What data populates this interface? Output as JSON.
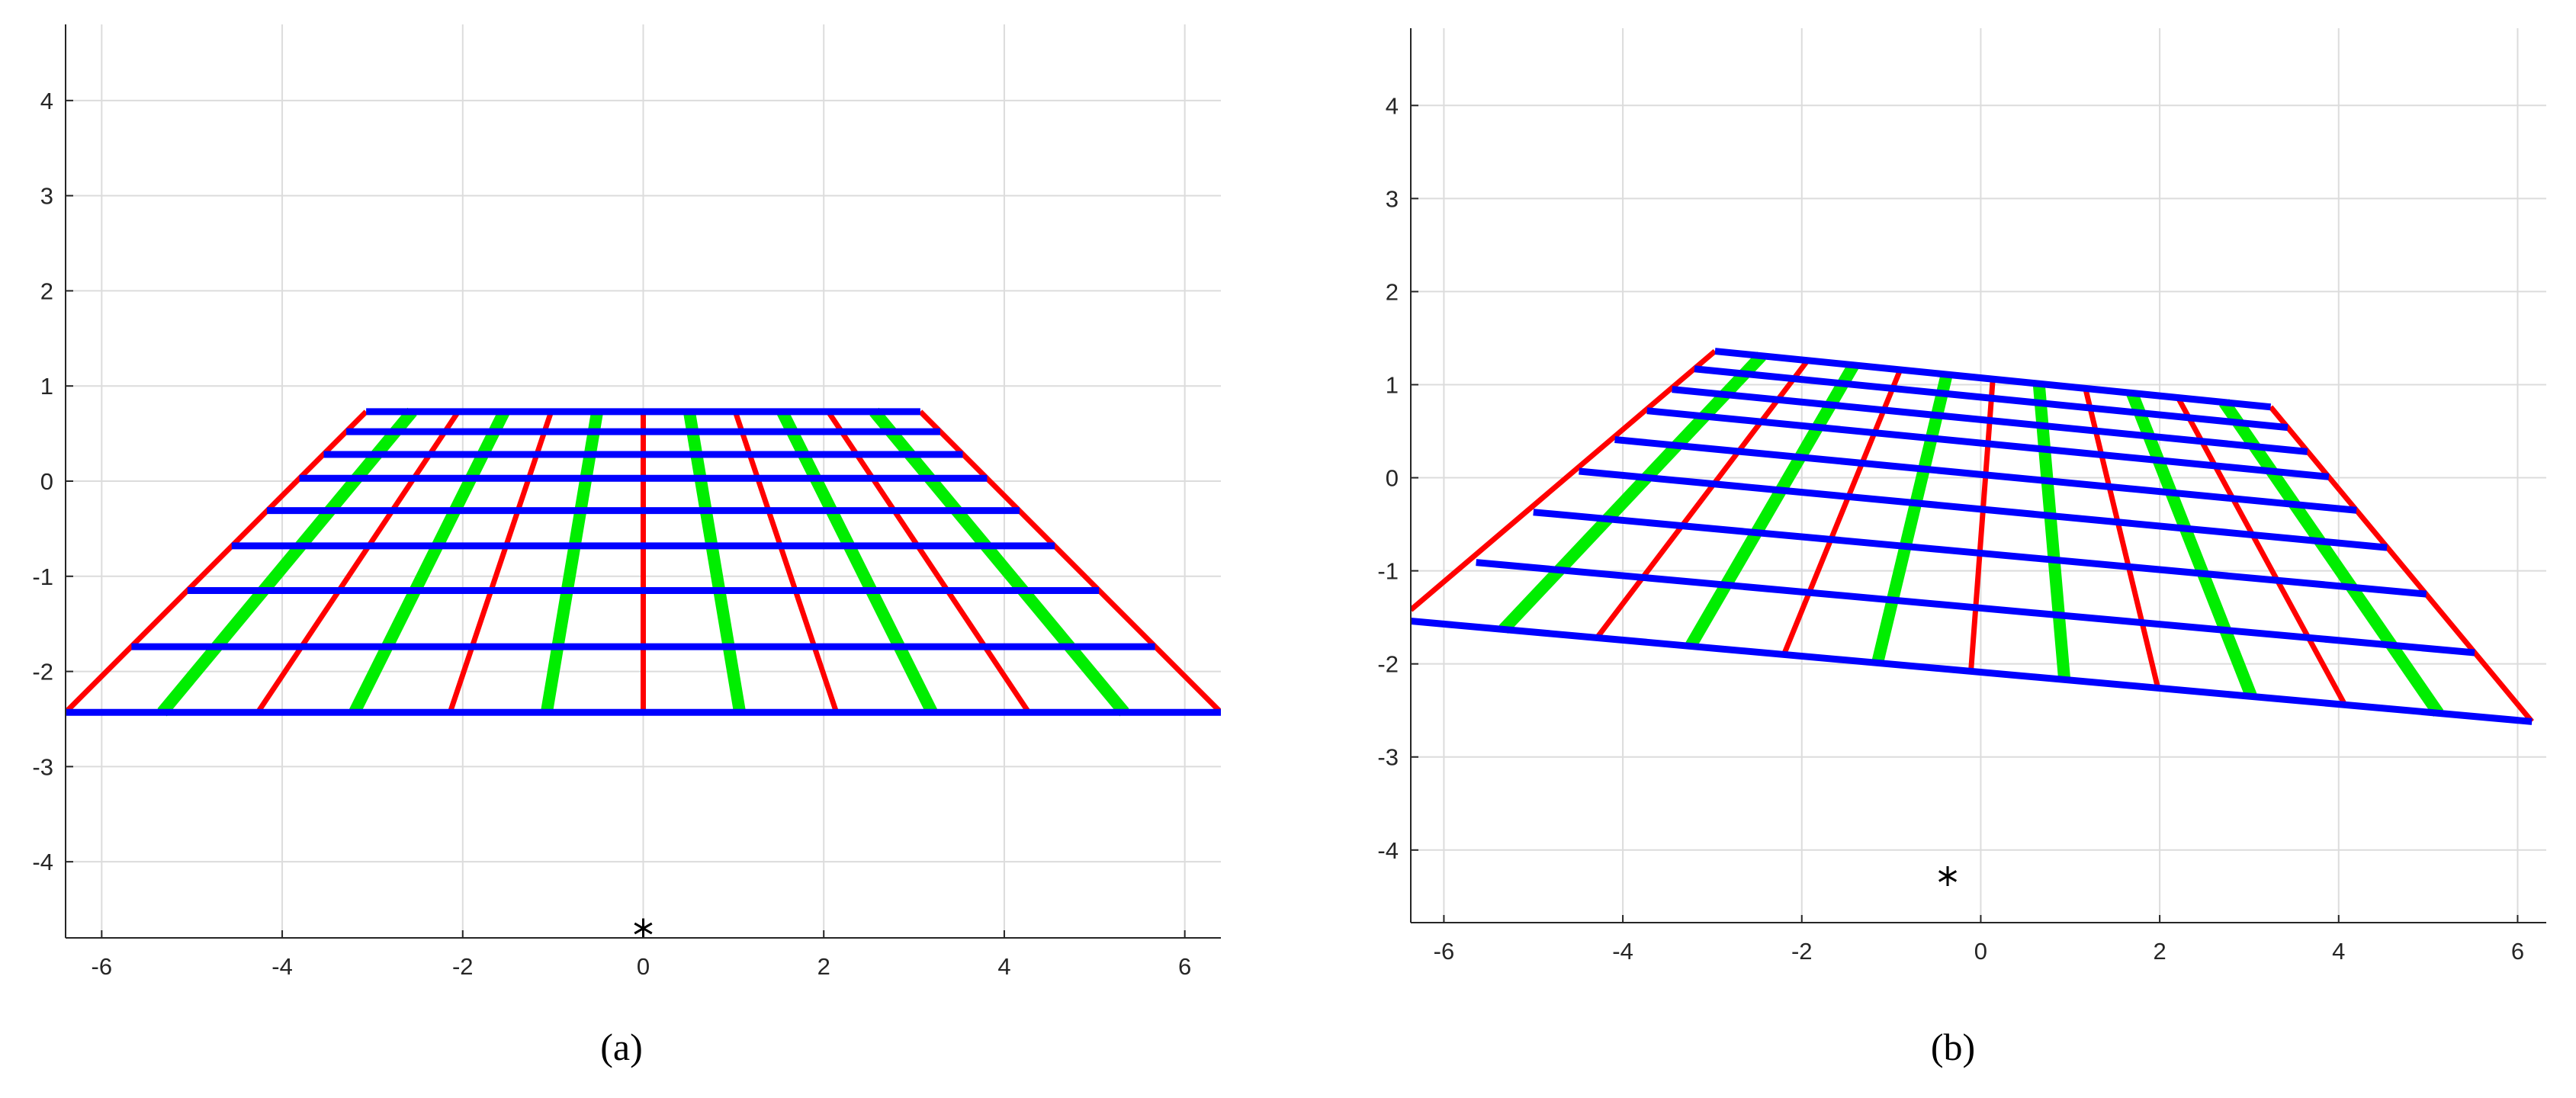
{
  "chart_data": [
    {
      "type": "line",
      "caption": "(a)",
      "xlim": [
        -6.4,
        6.4
      ],
      "ylim": [
        -4.8,
        4.8
      ],
      "xticks": [
        -6,
        -4,
        -2,
        0,
        2,
        4,
        6
      ],
      "yticks": [
        -4,
        -3,
        -2,
        -1,
        0,
        1,
        2,
        3,
        4
      ],
      "grid": true,
      "series": [
        {
          "color": "#00ee00",
          "x": [
            -2.56,
            -5.33,
            null,
            -1.54,
            -3.2,
            null,
            -0.51,
            -1.07,
            null,
            0.51,
            1.07,
            null,
            1.54,
            3.2,
            null,
            2.56,
            5.33
          ],
          "values": [
            0.73,
            -2.43,
            null,
            0.73,
            -2.43,
            null,
            0.73,
            -2.43,
            null,
            0.73,
            -2.43,
            null,
            0.73,
            -2.43,
            null,
            0.73,
            -2.43
          ]
        },
        {
          "color": "#ff0000",
          "x": [
            -6.4,
            -3.07,
            null,
            -4.27,
            -2.05,
            null,
            -2.14,
            -1.02,
            null,
            0,
            0,
            null,
            2.14,
            1.02,
            null,
            4.27,
            2.05,
            null,
            6.4,
            3.07
          ],
          "values": [
            -2.43,
            0.73,
            null,
            -2.43,
            0.73,
            null,
            -2.43,
            0.73,
            null,
            -2.43,
            0.73,
            null,
            -2.43,
            0.73,
            null,
            -2.43,
            0.73,
            null,
            -2.43,
            0.73
          ]
        },
        {
          "color": "#0000ff",
          "x": [
            -3.07,
            3.07,
            null,
            -3.29,
            3.29,
            null,
            -3.54,
            3.54,
            null,
            -3.81,
            3.81,
            null,
            -4.17,
            4.17,
            null,
            -4.56,
            4.56,
            null,
            -5.05,
            5.05,
            null,
            -5.67,
            5.67,
            null,
            -6.4,
            6.4
          ],
          "values": [
            0.73,
            0.73,
            null,
            0.52,
            0.52,
            null,
            0.28,
            0.28,
            null,
            0.03,
            0.03,
            null,
            -0.31,
            -0.31,
            null,
            -0.68,
            -0.68,
            null,
            -1.15,
            -1.15,
            null,
            -1.74,
            -1.74,
            null,
            -2.43,
            -2.43
          ]
        },
        {
          "color": "#000000",
          "marker": "asterisk",
          "x": [
            0
          ],
          "values": [
            -4.7
          ]
        }
      ]
    },
    {
      "type": "line",
      "caption": "(b)",
      "xlim": [
        -6.37,
        6.32
      ],
      "ylim": [
        -4.78,
        4.83
      ],
      "xticks": [
        -6,
        -4,
        -2,
        0,
        2,
        4,
        6
      ],
      "yticks": [
        -4,
        -3,
        -2,
        -1,
        0,
        1,
        2,
        3,
        4
      ],
      "grid": true,
      "series": [
        {
          "color": "#00ee00",
          "x": [
            -2.45,
            -5.335,
            null,
            -1.42,
            -3.245,
            null,
            -0.38,
            -1.155,
            null,
            0.65,
            0.935,
            null,
            1.69,
            3.025,
            null,
            2.72,
            5.115
          ],
          "values": [
            1.31,
            -1.63,
            null,
            1.21,
            -1.81,
            null,
            1.11,
            -1.99,
            null,
            1.01,
            -2.17,
            null,
            0.91,
            -2.35,
            null,
            0.81,
            -2.53
          ]
        },
        {
          "color": "#ff0000",
          "x": [
            -6.37,
            -2.97,
            null,
            -4.29,
            -1.935,
            null,
            -2.2,
            -0.9,
            null,
            -0.11,
            0.135,
            null,
            1.98,
            1.17,
            null,
            4.07,
            2.205,
            null,
            6.16,
            3.24
          ],
          "values": [
            -1.42,
            1.36,
            null,
            -1.72,
            1.26,
            null,
            -1.9,
            1.16,
            null,
            -2.08,
            1.06,
            null,
            -2.26,
            0.96,
            null,
            -2.44,
            0.86,
            null,
            -2.62,
            0.76
          ]
        },
        {
          "color": "#0000ff",
          "x": [
            -2.97,
            3.24,
            null,
            -3.2,
            3.43,
            null,
            -3.45,
            3.65,
            null,
            -3.73,
            3.89,
            null,
            -4.09,
            4.2,
            null,
            -4.49,
            4.54,
            null,
            -5.0,
            4.98,
            null,
            -5.64,
            5.52,
            null,
            -6.37,
            6.16
          ],
          "values": [
            1.36,
            0.76,
            null,
            1.17,
            0.54,
            null,
            0.95,
            0.28,
            null,
            0.72,
            0.01,
            null,
            0.41,
            -0.35,
            null,
            0.07,
            -0.75,
            null,
            -0.37,
            -1.25,
            null,
            -0.91,
            -1.88,
            null,
            -1.54,
            -2.62
          ]
        },
        {
          "color": "#000000",
          "marker": "asterisk",
          "x": [
            -0.37
          ],
          "values": [
            -4.28
          ]
        }
      ]
    }
  ]
}
